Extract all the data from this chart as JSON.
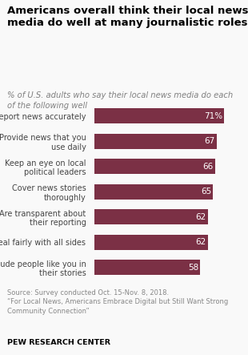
{
  "title": "Americans overall think their local news\nmedia do well at many journalistic roles",
  "subtitle": "% of U.S. adults who say their local news media do each\nof the following well",
  "categories": [
    "Report news accurately",
    "Provide news that you\nuse daily",
    "Keep an eye on local\npolitical leaders",
    "Cover news stories\nthoroughly",
    "Are transparent about\ntheir reporting",
    "Deal fairly with all sides",
    "Include people like you in\ntheir stories"
  ],
  "values": [
    71,
    67,
    66,
    65,
    62,
    62,
    58
  ],
  "value_labels": [
    "71%",
    "67",
    "66",
    "65",
    "62",
    "62",
    "58"
  ],
  "bar_color": "#7b3045",
  "text_color": "#ffffff",
  "title_color": "#000000",
  "subtitle_color": "#808080",
  "source_line1": "Source: Survey conducted Oct. 15-Nov. 8, 2018.",
  "source_line2": "“For Local News, Americans Embrace Digital but Still Want Strong\nCommunity Connection”",
  "footer_text": "PEW RESEARCH CENTER",
  "background_color": "#f9f9f9",
  "xlim": [
    0,
    80
  ],
  "label_text_color": "#444444"
}
